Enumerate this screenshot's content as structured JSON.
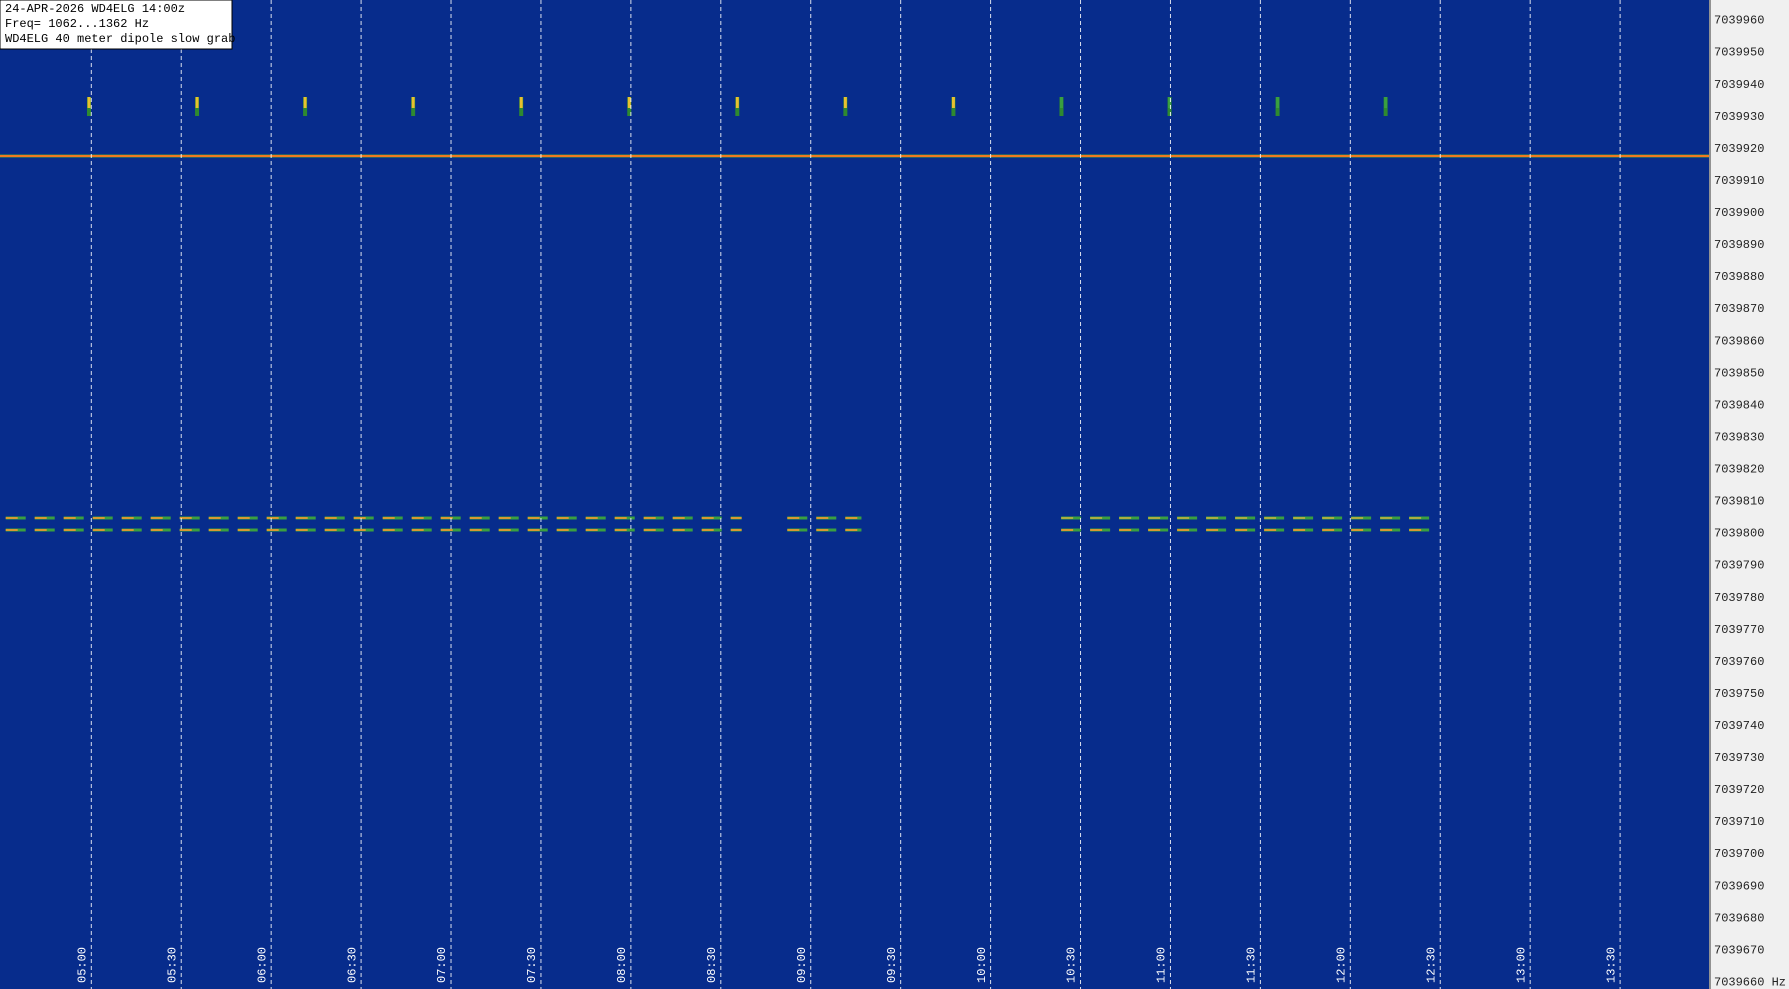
{
  "info_box": {
    "lines": [
      "24-APR-2026  WD4ELG  14:00z",
      "Freq= 1062...1362 Hz",
      "WD4ELG 40 meter dipole slow grab"
    ]
  },
  "time_labels": [
    "05:00",
    "05:30",
    "06:00",
    "06:30",
    "07:00",
    "07:30",
    "08:00",
    "08:30",
    "09:00",
    "09:30",
    "10:00",
    "10:30",
    "11:00",
    "11:30",
    "12:00",
    "12:30",
    "13:00",
    "13:30"
  ],
  "freq_labels": [
    "7039960",
    "7039950",
    "7039940",
    "7039930",
    "7039920",
    "7039910",
    "7039900",
    "7039890",
    "7039880",
    "7039870",
    "7039860",
    "7039850",
    "7039840",
    "7039830",
    "7039820",
    "7039810",
    "7039800",
    "7039790",
    "7039780",
    "7039770",
    "7039760",
    "7039750",
    "7039740",
    "7039730",
    "7039720",
    "7039710",
    "7039700",
    "7039690",
    "7039680",
    "7039670",
    "7039660 Hz"
  ]
}
